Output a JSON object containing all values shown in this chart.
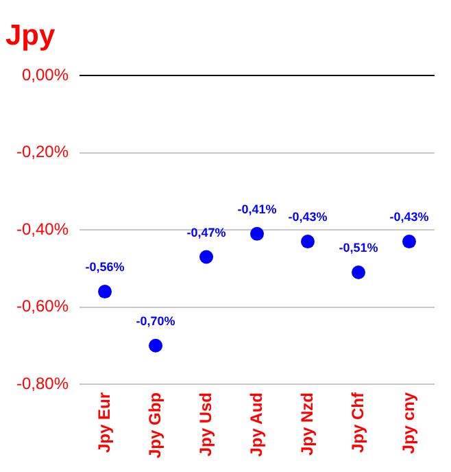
{
  "chart_data": {
    "type": "scatter",
    "title": "Jpy",
    "categories": [
      "Jpy Eur",
      "Jpy Gbp",
      "Jpy Usd",
      "Jpy Aud",
      "Jpy Nzd",
      "Jpy Chf",
      "Jpy cny"
    ],
    "series": [
      {
        "color": "#0000ff",
        "values": [
          -0.56,
          -0.7,
          -0.47,
          -0.41,
          -0.43,
          -0.51,
          -0.43
        ],
        "value_labels": [
          "-0,56%",
          "-0,70%",
          "-0,47%",
          "-0,41%",
          "-0,43%",
          "-0,51%",
          "-0,43%"
        ]
      }
    ],
    "ylim": [
      -0.8,
      0
    ],
    "yticks": [
      {
        "value": -0.8,
        "label": "-0,80%"
      },
      {
        "value": -0.6,
        "label": "-0,60%"
      },
      {
        "value": -0.4,
        "label": "-0,40%"
      },
      {
        "value": -0.2,
        "label": "-0,20%"
      },
      {
        "value": 0,
        "label": "0,00%"
      }
    ],
    "grid": "y",
    "legend": false,
    "marker": "circle"
  }
}
